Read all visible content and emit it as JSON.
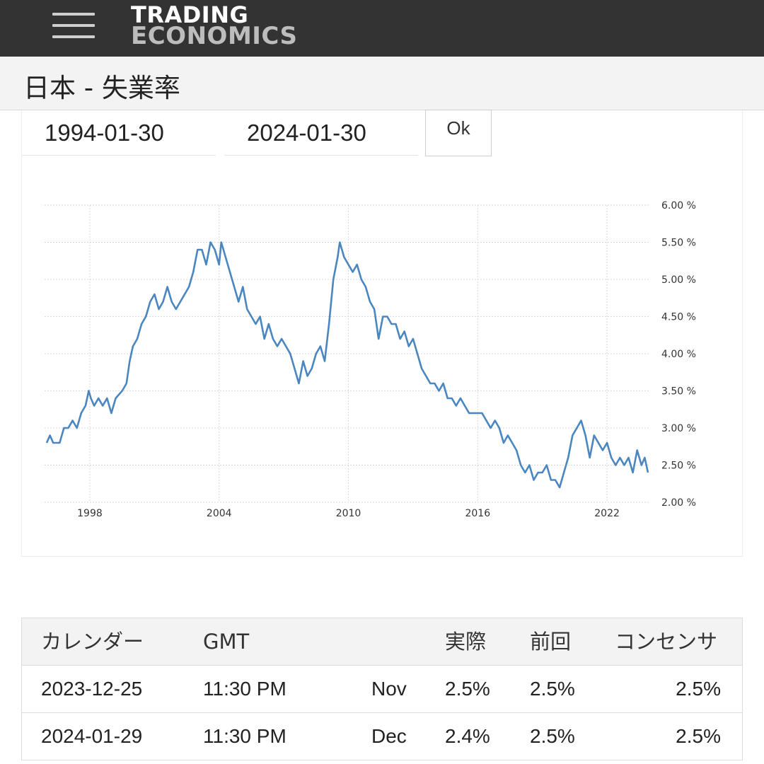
{
  "header": {
    "logo_line1": "TRADING",
    "logo_line2": "ECONOMICS",
    "menu_icon": "hamburger-menu-icon"
  },
  "page": {
    "title": "日本 - 失業率"
  },
  "date_range": {
    "from": "1994-01-30",
    "to": "2024-01-30",
    "ok_label": "Ok"
  },
  "chart_data": {
    "type": "line",
    "line_color": "#4a86c0",
    "grid": true,
    "y_axis_position": "right",
    "xlim": [
      1995.9,
      2024.0
    ],
    "ylim": [
      2.0,
      6.0
    ],
    "x_ticks": [
      "1998",
      "2004",
      "2010",
      "2016",
      "2022"
    ],
    "y_ticks": [
      "2.00 %",
      "2.50 %",
      "3.00 %",
      "3.50 %",
      "4.00 %",
      "4.50 %",
      "5.00 %",
      "5.50 %",
      "6.00 %"
    ],
    "series": [
      {
        "points": [
          [
            1996.0,
            2.8
          ],
          [
            1996.15,
            2.9
          ],
          [
            1996.3,
            2.8
          ],
          [
            1996.6,
            2.8
          ],
          [
            1996.8,
            3.0
          ],
          [
            1997.0,
            3.0
          ],
          [
            1997.2,
            3.1
          ],
          [
            1997.4,
            3.0
          ],
          [
            1997.6,
            3.2
          ],
          [
            1997.8,
            3.3
          ],
          [
            1997.95,
            3.5
          ],
          [
            1998.05,
            3.4
          ],
          [
            1998.2,
            3.3
          ],
          [
            1998.4,
            3.4
          ],
          [
            1998.6,
            3.3
          ],
          [
            1998.8,
            3.4
          ],
          [
            1999.0,
            3.2
          ],
          [
            1999.2,
            3.4
          ],
          [
            1999.5,
            3.5
          ],
          [
            1999.7,
            3.6
          ],
          [
            1999.85,
            3.9
          ],
          [
            2000.0,
            4.1
          ],
          [
            2000.2,
            4.2
          ],
          [
            2000.4,
            4.4
          ],
          [
            2000.6,
            4.5
          ],
          [
            2000.8,
            4.7
          ],
          [
            2001.0,
            4.8
          ],
          [
            2001.2,
            4.6
          ],
          [
            2001.4,
            4.7
          ],
          [
            2001.6,
            4.9
          ],
          [
            2001.8,
            4.7
          ],
          [
            2002.0,
            4.6
          ],
          [
            2002.2,
            4.7
          ],
          [
            2002.4,
            4.8
          ],
          [
            2002.6,
            4.9
          ],
          [
            2002.8,
            5.1
          ],
          [
            2003.0,
            5.4
          ],
          [
            2003.2,
            5.4
          ],
          [
            2003.4,
            5.2
          ],
          [
            2003.6,
            5.5
          ],
          [
            2003.8,
            5.4
          ],
          [
            2004.0,
            5.2
          ],
          [
            2004.1,
            5.5
          ],
          [
            2004.3,
            5.3
          ],
          [
            2004.5,
            5.1
          ],
          [
            2004.7,
            4.9
          ],
          [
            2004.9,
            4.7
          ],
          [
            2005.1,
            4.9
          ],
          [
            2005.3,
            4.6
          ],
          [
            2005.5,
            4.5
          ],
          [
            2005.7,
            4.4
          ],
          [
            2005.9,
            4.5
          ],
          [
            2006.1,
            4.2
          ],
          [
            2006.3,
            4.4
          ],
          [
            2006.5,
            4.2
          ],
          [
            2006.7,
            4.1
          ],
          [
            2006.9,
            4.2
          ],
          [
            2007.1,
            4.1
          ],
          [
            2007.3,
            4.0
          ],
          [
            2007.5,
            3.8
          ],
          [
            2007.7,
            3.6
          ],
          [
            2007.9,
            3.9
          ],
          [
            2008.1,
            3.7
          ],
          [
            2008.3,
            3.8
          ],
          [
            2008.5,
            4.0
          ],
          [
            2008.7,
            4.1
          ],
          [
            2008.9,
            3.9
          ],
          [
            2009.1,
            4.4
          ],
          [
            2009.3,
            5.0
          ],
          [
            2009.5,
            5.3
          ],
          [
            2009.6,
            5.5
          ],
          [
            2009.8,
            5.3
          ],
          [
            2010.0,
            5.2
          ],
          [
            2010.2,
            5.1
          ],
          [
            2010.4,
            5.2
          ],
          [
            2010.6,
            5.0
          ],
          [
            2010.8,
            4.9
          ],
          [
            2011.0,
            4.7
          ],
          [
            2011.2,
            4.6
          ],
          [
            2011.4,
            4.2
          ],
          [
            2011.6,
            4.5
          ],
          [
            2011.8,
            4.5
          ],
          [
            2012.0,
            4.4
          ],
          [
            2012.2,
            4.4
          ],
          [
            2012.4,
            4.2
          ],
          [
            2012.6,
            4.3
          ],
          [
            2012.8,
            4.1
          ],
          [
            2013.0,
            4.2
          ],
          [
            2013.2,
            4.0
          ],
          [
            2013.4,
            3.8
          ],
          [
            2013.6,
            3.7
          ],
          [
            2013.8,
            3.6
          ],
          [
            2014.0,
            3.6
          ],
          [
            2014.2,
            3.5
          ],
          [
            2014.4,
            3.6
          ],
          [
            2014.6,
            3.4
          ],
          [
            2014.8,
            3.4
          ],
          [
            2015.0,
            3.3
          ],
          [
            2015.2,
            3.4
          ],
          [
            2015.4,
            3.3
          ],
          [
            2015.6,
            3.2
          ],
          [
            2015.8,
            3.2
          ],
          [
            2016.0,
            3.2
          ],
          [
            2016.2,
            3.2
          ],
          [
            2016.4,
            3.1
          ],
          [
            2016.6,
            3.0
          ],
          [
            2016.8,
            3.1
          ],
          [
            2017.0,
            3.0
          ],
          [
            2017.2,
            2.8
          ],
          [
            2017.4,
            2.9
          ],
          [
            2017.6,
            2.8
          ],
          [
            2017.8,
            2.7
          ],
          [
            2018.0,
            2.5
          ],
          [
            2018.2,
            2.4
          ],
          [
            2018.4,
            2.5
          ],
          [
            2018.6,
            2.3
          ],
          [
            2018.8,
            2.4
          ],
          [
            2019.0,
            2.4
          ],
          [
            2019.2,
            2.5
          ],
          [
            2019.4,
            2.3
          ],
          [
            2019.6,
            2.3
          ],
          [
            2019.8,
            2.2
          ],
          [
            2020.0,
            2.4
          ],
          [
            2020.2,
            2.6
          ],
          [
            2020.4,
            2.9
          ],
          [
            2020.6,
            3.0
          ],
          [
            2020.8,
            3.1
          ],
          [
            2021.0,
            2.9
          ],
          [
            2021.2,
            2.6
          ],
          [
            2021.4,
            2.9
          ],
          [
            2021.6,
            2.8
          ],
          [
            2021.8,
            2.7
          ],
          [
            2022.0,
            2.8
          ],
          [
            2022.2,
            2.6
          ],
          [
            2022.4,
            2.5
          ],
          [
            2022.6,
            2.6
          ],
          [
            2022.8,
            2.5
          ],
          [
            2023.0,
            2.6
          ],
          [
            2023.2,
            2.4
          ],
          [
            2023.4,
            2.7
          ],
          [
            2023.6,
            2.5
          ],
          [
            2023.75,
            2.6
          ],
          [
            2023.9,
            2.4
          ]
        ]
      }
    ]
  },
  "calendar": {
    "headers": {
      "calendar": "カレンダー",
      "gmt": "GMT",
      "reference": "",
      "actual": "実際",
      "previous": "前回",
      "consensus": "コンセンサ"
    },
    "rows": [
      {
        "date": "2023-12-25",
        "time": "11:30 PM",
        "reference": "Nov",
        "actual": "2.5%",
        "previous": "2.5%",
        "consensus": "2.5%"
      },
      {
        "date": "2024-01-29",
        "time": "11:30 PM",
        "reference": "Dec",
        "actual": "2.4%",
        "previous": "2.5%",
        "consensus": "2.5%"
      }
    ]
  }
}
